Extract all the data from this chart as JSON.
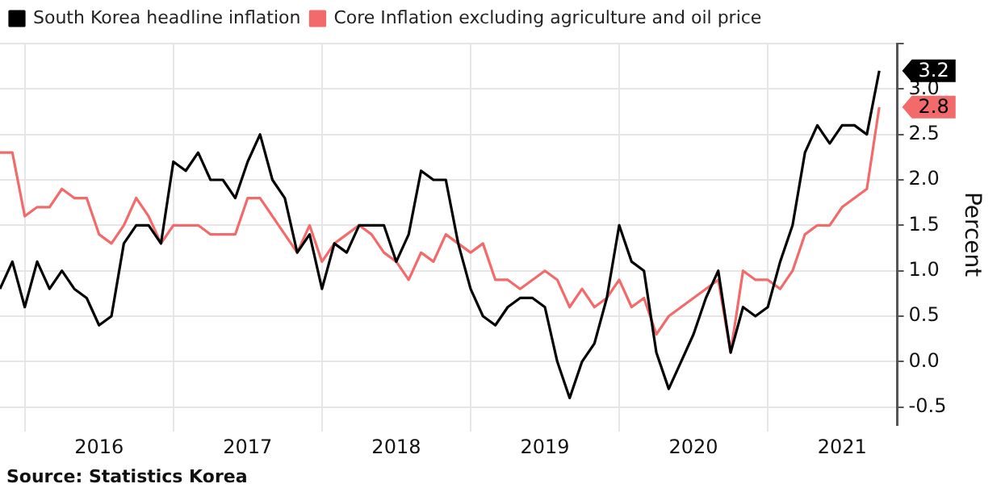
{
  "chart_data": {
    "type": "line",
    "ylabel": "Percent",
    "annotations": [
      {
        "text": "3.2",
        "x": "2021-10",
        "y": 3.2
      },
      {
        "text": "2.8",
        "x": "2021-10",
        "y": 2.8
      },
      "Source: Statistics Korea"
    ],
    "x": [
      "2015-11",
      "2015-12",
      "2016-01",
      "2016-02",
      "2016-03",
      "2016-04",
      "2016-05",
      "2016-06",
      "2016-07",
      "2016-08",
      "2016-09",
      "2016-10",
      "2016-11",
      "2016-12",
      "2017-01",
      "2017-02",
      "2017-03",
      "2017-04",
      "2017-05",
      "2017-06",
      "2017-07",
      "2017-08",
      "2017-09",
      "2017-10",
      "2017-11",
      "2017-12",
      "2018-01",
      "2018-02",
      "2018-03",
      "2018-04",
      "2018-05",
      "2018-06",
      "2018-07",
      "2018-08",
      "2018-09",
      "2018-10",
      "2018-11",
      "2018-12",
      "2019-01",
      "2019-02",
      "2019-03",
      "2019-04",
      "2019-05",
      "2019-06",
      "2019-07",
      "2019-08",
      "2019-09",
      "2019-10",
      "2019-11",
      "2019-12",
      "2020-01",
      "2020-02",
      "2020-03",
      "2020-04",
      "2020-05",
      "2020-06",
      "2020-07",
      "2020-08",
      "2020-09",
      "2020-10",
      "2020-11",
      "2020-12",
      "2021-01",
      "2021-02",
      "2021-03",
      "2021-04",
      "2021-05",
      "2021-06",
      "2021-07",
      "2021-08",
      "2021-09",
      "2021-10"
    ],
    "series": [
      {
        "name": "South Korea headline inflation",
        "color": "#000000",
        "values": [
          0.8,
          1.1,
          0.6,
          1.1,
          0.8,
          1.0,
          0.8,
          0.7,
          0.4,
          0.5,
          1.3,
          1.5,
          1.5,
          1.3,
          2.2,
          2.1,
          2.3,
          2.0,
          2.0,
          1.8,
          2.2,
          2.5,
          2.0,
          1.8,
          1.2,
          1.4,
          0.8,
          1.3,
          1.2,
          1.5,
          1.5,
          1.5,
          1.1,
          1.4,
          2.1,
          2.0,
          2.0,
          1.3,
          0.8,
          0.5,
          0.4,
          0.6,
          0.7,
          0.7,
          0.6,
          0.0,
          -0.4,
          0.0,
          0.2,
          0.7,
          1.5,
          1.1,
          1.0,
          0.1,
          -0.3,
          0.0,
          0.3,
          0.7,
          1.0,
          0.1,
          0.6,
          0.5,
          0.6,
          1.1,
          1.5,
          2.3,
          2.6,
          2.4,
          2.6,
          2.6,
          2.5,
          3.2
        ]
      },
      {
        "name": "Core Inflation excluding agriculture and oil price",
        "color": "#f26a6a",
        "values": [
          2.3,
          2.3,
          1.6,
          1.7,
          1.7,
          1.9,
          1.8,
          1.8,
          1.4,
          1.3,
          1.5,
          1.8,
          1.6,
          1.3,
          1.5,
          1.5,
          1.5,
          1.4,
          1.4,
          1.4,
          1.8,
          1.8,
          1.6,
          1.4,
          1.2,
          1.5,
          1.1,
          1.3,
          1.4,
          1.5,
          1.4,
          1.2,
          1.1,
          0.9,
          1.2,
          1.1,
          1.4,
          1.3,
          1.2,
          1.3,
          0.9,
          0.9,
          0.8,
          0.9,
          1.0,
          0.9,
          0.6,
          0.8,
          0.6,
          0.7,
          0.9,
          0.6,
          0.7,
          0.3,
          0.5,
          0.6,
          0.7,
          0.8,
          0.9,
          0.1,
          1.0,
          0.9,
          0.9,
          0.8,
          1.0,
          1.4,
          1.5,
          1.5,
          1.7,
          1.8,
          1.9,
          2.8
        ]
      }
    ],
    "xlim": [
      "2015-11",
      "2021-11-15"
    ],
    "xticks": [
      {
        "value": "2016-01",
        "label": null
      },
      {
        "value": "2016-07",
        "label": "2016"
      },
      {
        "value": "2017-01",
        "label": null
      },
      {
        "value": "2017-07",
        "label": "2017"
      },
      {
        "value": "2018-01",
        "label": null
      },
      {
        "value": "2018-07",
        "label": "2018"
      },
      {
        "value": "2019-01",
        "label": null
      },
      {
        "value": "2019-07",
        "label": "2019"
      },
      {
        "value": "2020-01",
        "label": null
      },
      {
        "value": "2020-07",
        "label": "2020"
      },
      {
        "value": "2021-01",
        "label": null
      },
      {
        "value": "2021-07",
        "label": "2021"
      }
    ],
    "ylim": [
      -0.7,
      3.5
    ],
    "yticks": [
      -0.5,
      {
        "value": 0,
        "label": "0.0"
      },
      0.5,
      {
        "value": 1,
        "label": "1.0"
      },
      1.5,
      {
        "value": 2,
        "label": "2.0"
      },
      2.5,
      {
        "value": 3,
        "label": "3.0"
      },
      {
        "value": 3.5,
        "label": null
      }
    ],
    "grid": true,
    "legend": "top left",
    "marker": "none",
    "line_style": "solid"
  }
}
